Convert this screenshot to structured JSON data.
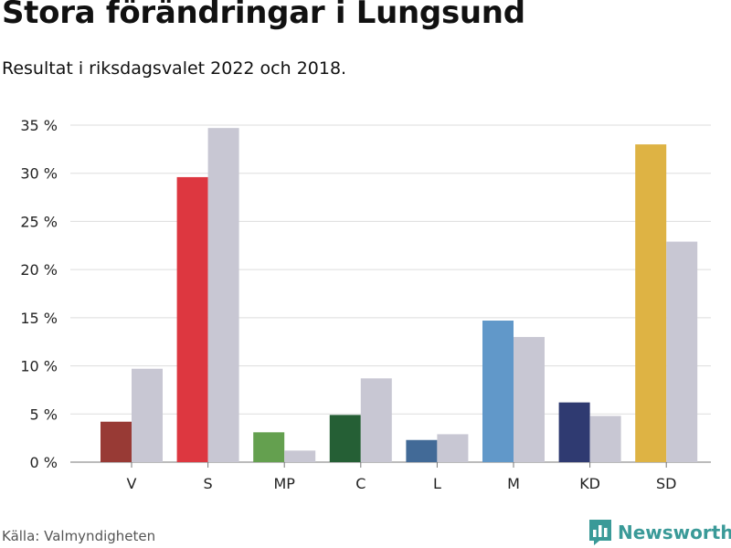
{
  "title": "Stora förändringar i Lungsund",
  "subtitle": "Resultat i riksdagsvalet 2022 och 2018.",
  "source": "Källa: Valmyndigheten",
  "brand": {
    "name": "Newsworthy",
    "icon": "bar-chart-logo-icon",
    "color": "#3a9a98"
  },
  "chart_data": {
    "type": "bar",
    "categories": [
      "V",
      "S",
      "MP",
      "C",
      "L",
      "M",
      "KD",
      "SD"
    ],
    "series": [
      {
        "values": [
          4.2,
          29.6,
          3.1,
          4.9,
          2.3,
          14.7,
          6.2,
          33.0
        ],
        "colors": [
          "#983a35",
          "#dd3740",
          "#64a04f",
          "#255f35",
          "#426a97",
          "#6198c9",
          "#2f3a71",
          "#deb344"
        ]
      },
      {
        "values": [
          9.7,
          34.7,
          1.2,
          8.7,
          2.9,
          13.0,
          4.8,
          22.9
        ],
        "color": "#c8c7d3"
      }
    ],
    "ylim": [
      0,
      35
    ],
    "yticks": [
      0,
      5,
      10,
      15,
      20,
      25,
      30,
      35
    ],
    "ytick_labels": [
      "0 %",
      "5 %",
      "10 %",
      "15 %",
      "20 %",
      "25 %",
      "30 %",
      "35 %"
    ],
    "xlabel": "",
    "ylabel": "",
    "grid": true,
    "legend": "none"
  }
}
